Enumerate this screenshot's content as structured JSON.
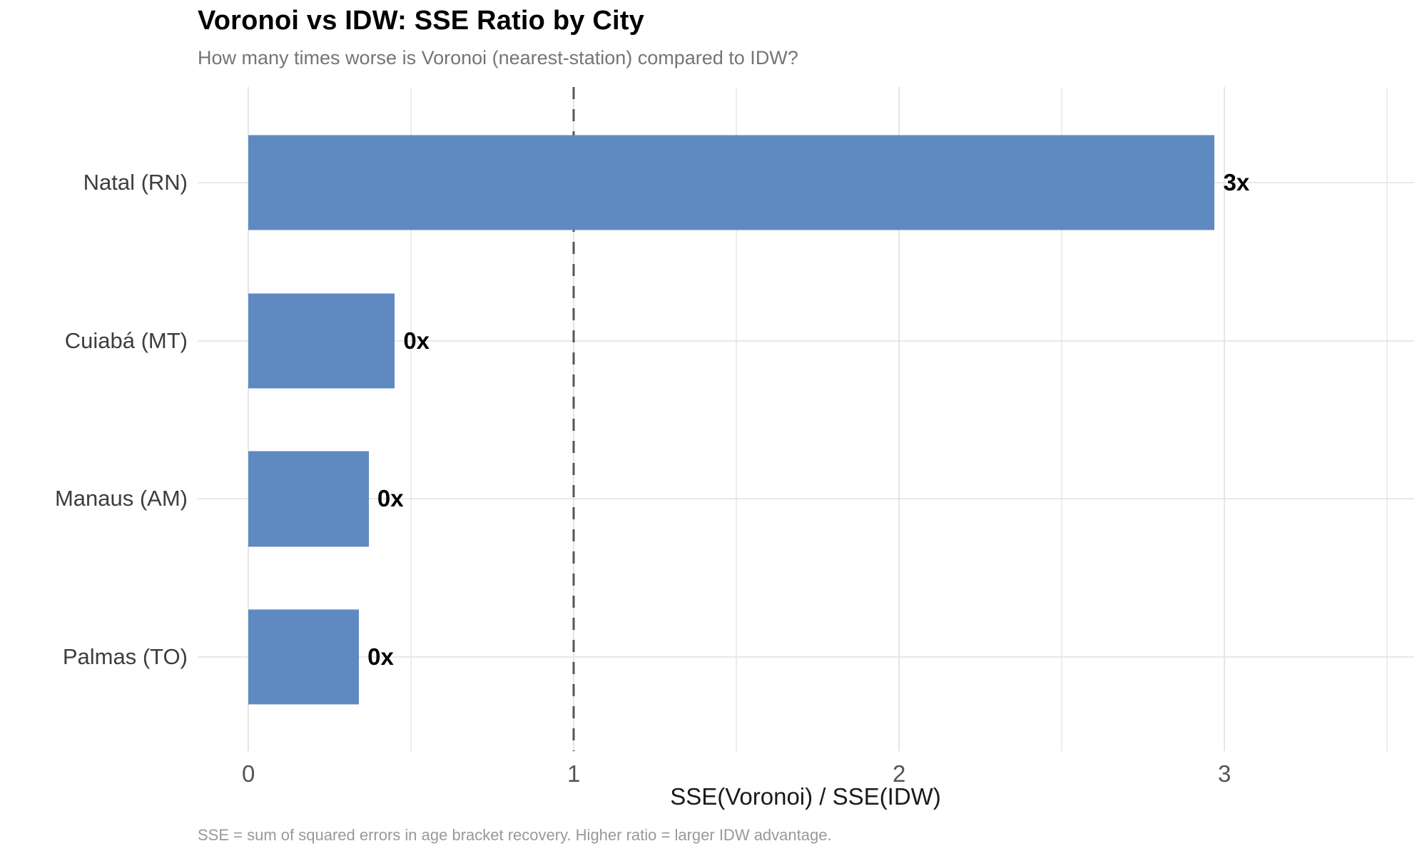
{
  "chart_data": {
    "type": "bar",
    "orientation": "horizontal",
    "title": "Voronoi vs IDW: SSE Ratio by City",
    "subtitle": "How many times worse is Voronoi (nearest-station) compared to IDW?",
    "categories": [
      "Natal (RN)",
      "Cuiabá (MT)",
      "Manaus (AM)",
      "Palmas (TO)"
    ],
    "values": [
      2.97,
      0.45,
      0.37,
      0.34
    ],
    "bar_labels": [
      "3x",
      "0x",
      "0x",
      "0x"
    ],
    "xlabel": "SSE(Voronoi) / SSE(IDW)",
    "caption": "SSE = sum of squared errors in age bracket recovery. Higher ratio = larger IDW advantage.",
    "x_ticks": [
      0,
      1,
      2,
      3
    ],
    "x_minor_ticks": [
      0.5,
      1.5,
      2.5,
      3.5
    ],
    "xlim": [
      -0.156,
      3.583
    ],
    "reference_line_x": 1,
    "grid": true,
    "legend": false,
    "bar_color": "#5e8ac1",
    "reference_line_color": "#555555",
    "grid_color": "#e8e8e8"
  }
}
